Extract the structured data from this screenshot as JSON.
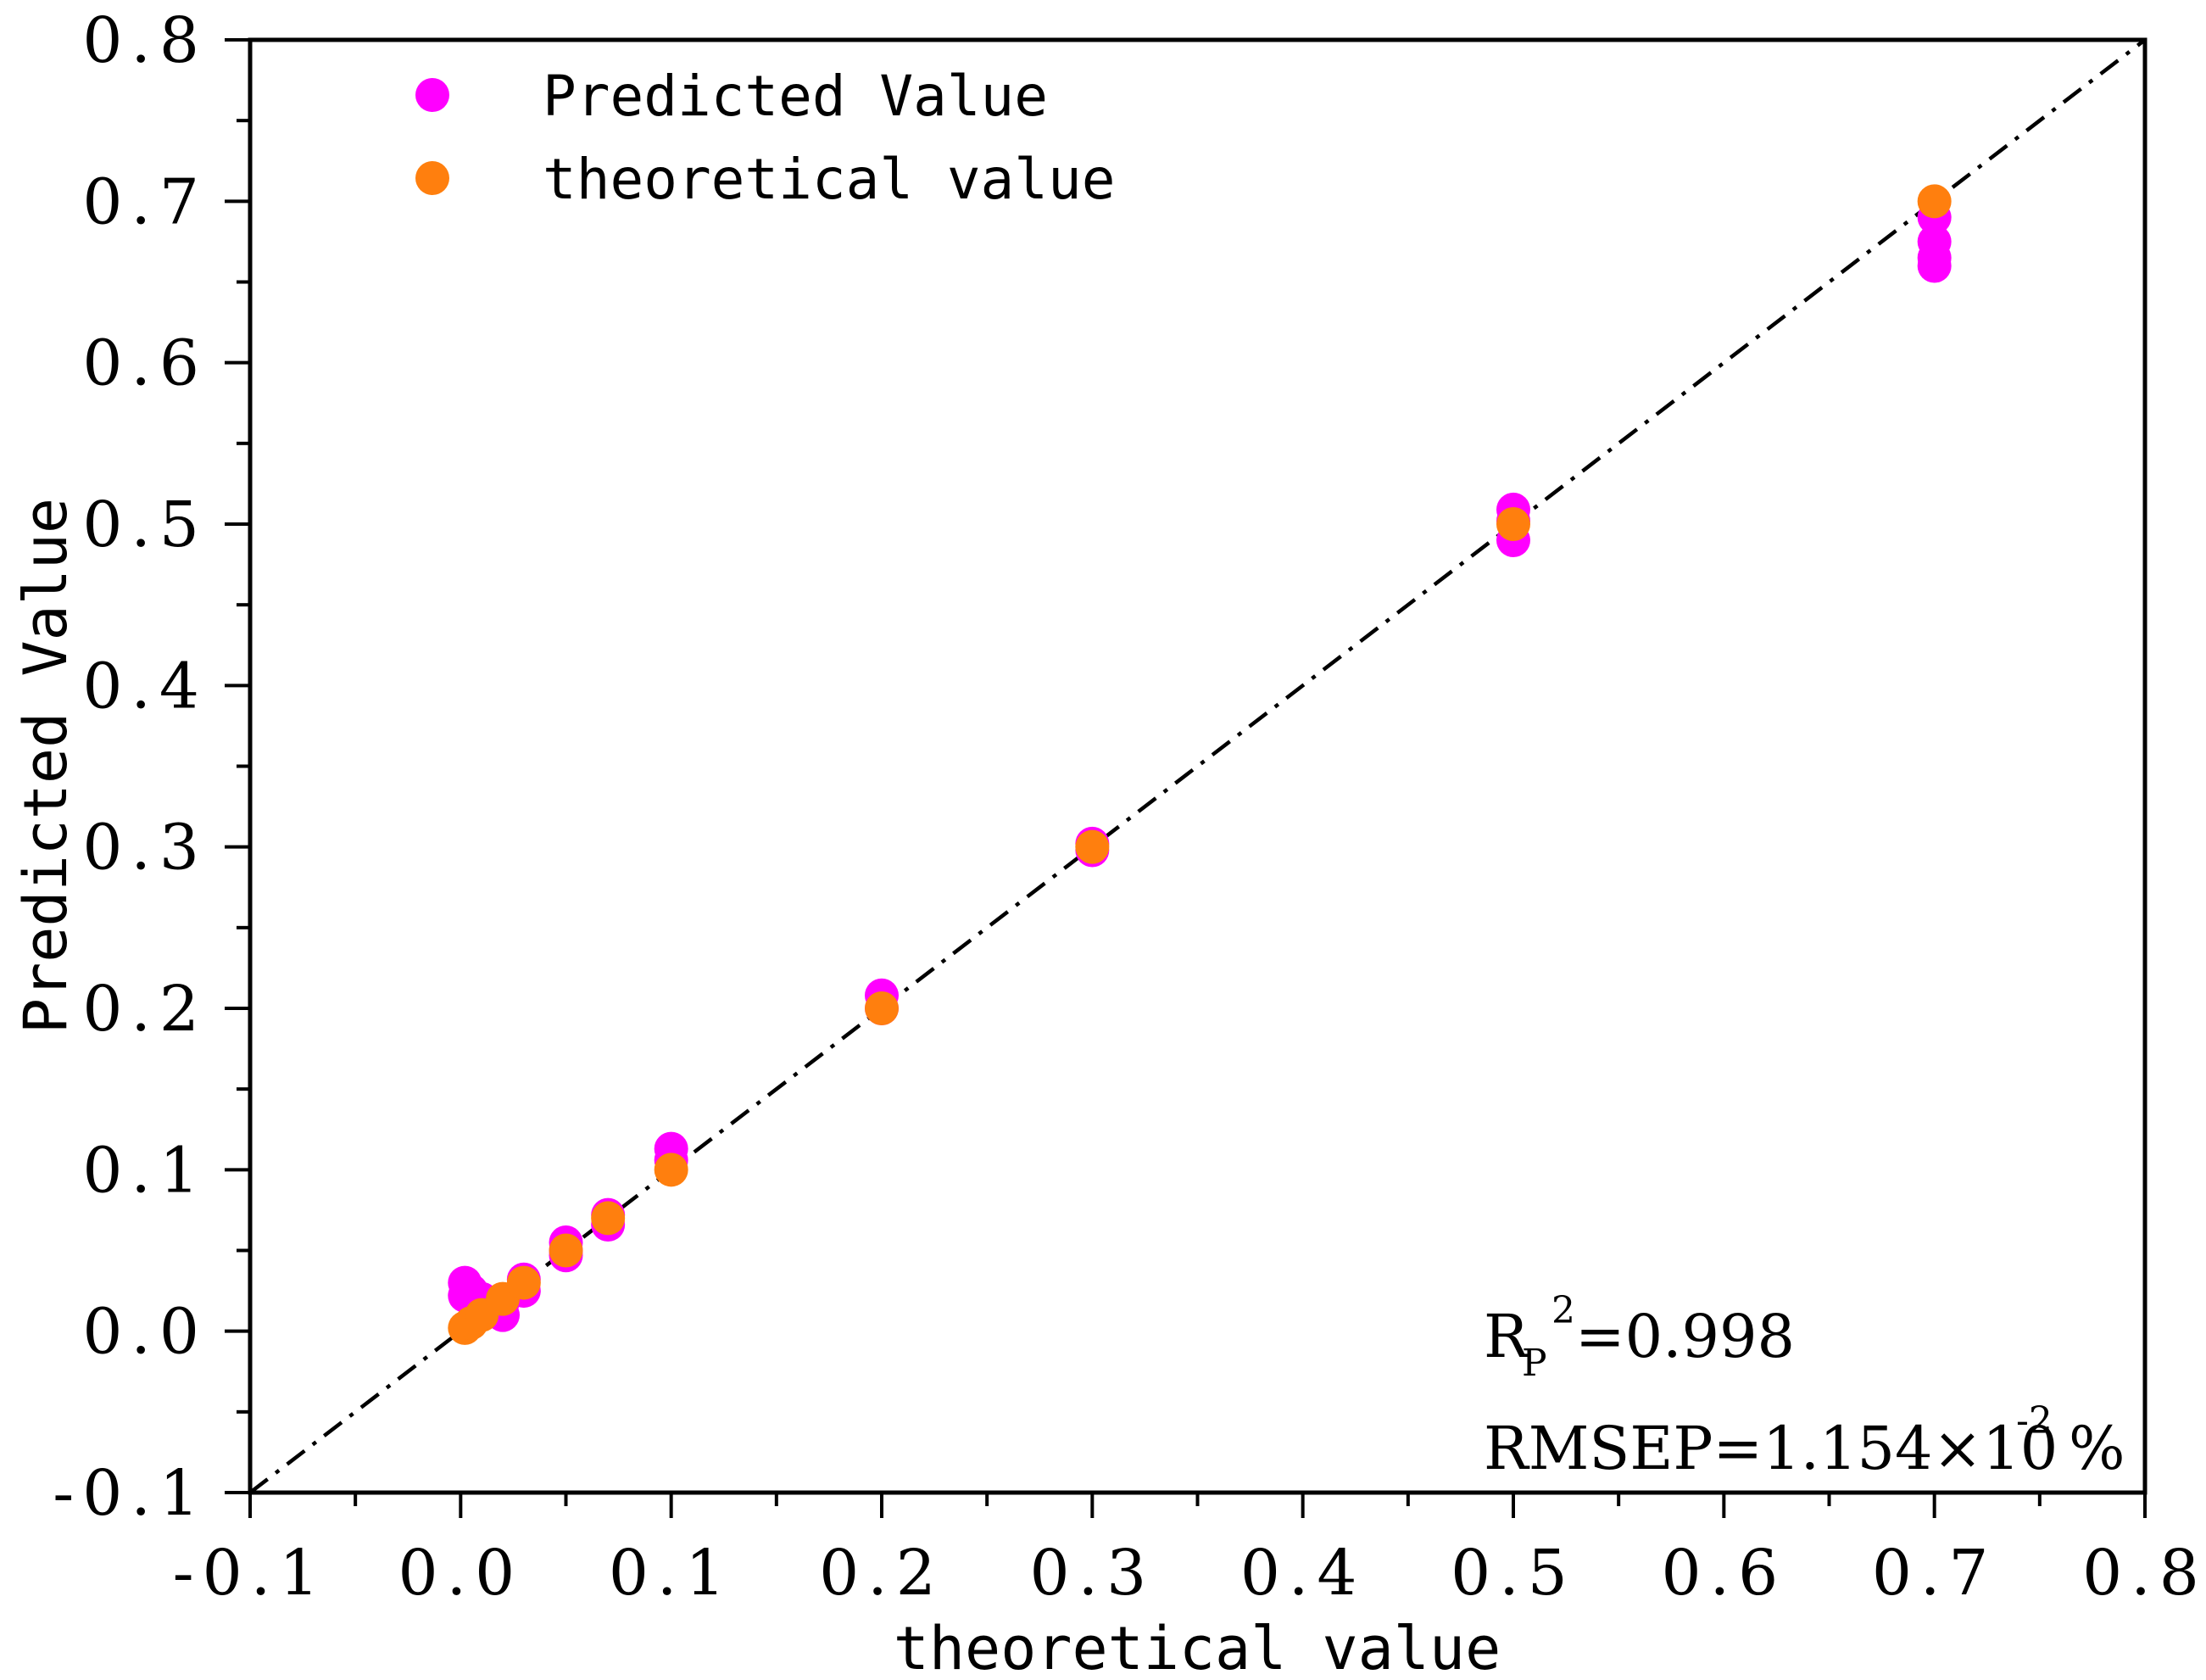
{
  "chart_data": {
    "type": "scatter",
    "xlabel": "theoretical value",
    "ylabel": "Predicted Value",
    "xlim": [
      -0.1,
      0.8
    ],
    "ylim": [
      -0.1,
      0.8
    ],
    "xticks": [
      "-0.1",
      "0.0",
      "0.1",
      "0.2",
      "0.3",
      "0.4",
      "0.5",
      "0.6",
      "0.7",
      "0.8"
    ],
    "yticks": [
      "-0.1",
      "0.0",
      "0.1",
      "0.2",
      "0.3",
      "0.4",
      "0.5",
      "0.6",
      "0.7",
      "0.8"
    ],
    "legend_position": "top-left",
    "reference_line": {
      "style": "dash-dot",
      "color": "#000000",
      "from": [
        -0.1,
        -0.1
      ],
      "to": [
        0.8,
        0.8
      ]
    },
    "series": [
      {
        "name": "Predicted Value",
        "color": "#ff00ff",
        "x": [
          0.002,
          0.002,
          0.005,
          0.01,
          0.01,
          0.018,
          0.02,
          0.02,
          0.03,
          0.03,
          0.05,
          0.05,
          0.05,
          0.07,
          0.07,
          0.1,
          0.1,
          0.2,
          0.2,
          0.3,
          0.3,
          0.5,
          0.5,
          0.5,
          0.7,
          0.7,
          0.7,
          0.7
        ],
        "y": [
          0.03,
          0.022,
          0.025,
          0.02,
          0.012,
          0.015,
          0.01,
          0.018,
          0.032,
          0.025,
          0.055,
          0.047,
          0.05,
          0.066,
          0.072,
          0.113,
          0.106,
          0.208,
          0.2,
          0.302,
          0.298,
          0.509,
          0.49,
          0.502,
          0.69,
          0.675,
          0.665,
          0.66
        ]
      },
      {
        "name": "theoretical value",
        "color": "#ff7f0e",
        "x": [
          0.002,
          0.005,
          0.01,
          0.02,
          0.03,
          0.05,
          0.07,
          0.1,
          0.2,
          0.3,
          0.5,
          0.7
        ],
        "y": [
          0.002,
          0.005,
          0.01,
          0.02,
          0.03,
          0.05,
          0.07,
          0.1,
          0.2,
          0.3,
          0.5,
          0.7
        ]
      }
    ],
    "annotations": {
      "r2_main": "R",
      "r2_sub": "P",
      "r2_sup": "2",
      "r2_value": "=0.998",
      "rmsep_main": "RMSEP=1.154×10",
      "rmsep_sup": "-2",
      "rmsep_unit": "%"
    }
  }
}
